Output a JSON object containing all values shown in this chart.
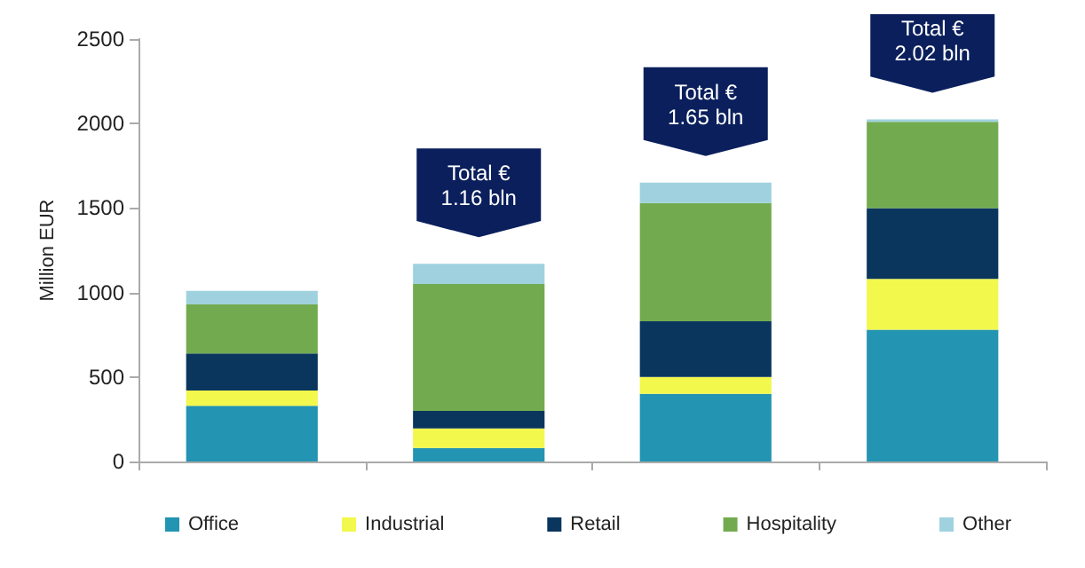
{
  "chart_data": {
    "type": "bar",
    "stacked": true,
    "ylabel": "Million EUR",
    "categories": [
      null,
      null,
      null,
      null
    ],
    "ylim": [
      0,
      2500
    ],
    "yticks": [
      0,
      500,
      1000,
      1500,
      2000,
      2500
    ],
    "grid": false,
    "legend": "bottom",
    "series": [
      {
        "name": "Office",
        "color": "#2394b1",
        "values": [
          330,
          80,
          400,
          780
        ]
      },
      {
        "name": "Industrial",
        "color": "#f2f84c",
        "values": [
          90,
          115,
          100,
          300
        ]
      },
      {
        "name": "Retail",
        "color": "#0a365e",
        "values": [
          220,
          105,
          330,
          420
        ]
      },
      {
        "name": "Hospitality",
        "color": "#72ab4f",
        "values": [
          290,
          750,
          700,
          510
        ]
      },
      {
        "name": "Other",
        "color": "#9fd2de",
        "values": [
          80,
          120,
          120,
          15
        ]
      }
    ],
    "annotations": [
      "Total €1.16 bln",
      "Total €1.65 bln",
      "Total €2.02 bln"
    ]
  }
}
